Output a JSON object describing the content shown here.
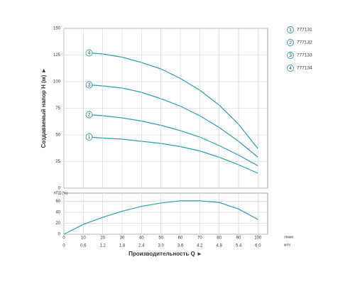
{
  "chart_data": [
    {
      "type": "line",
      "ylabel": "Создаваемый напор H (м) ►",
      "x": [
        13,
        20,
        30,
        40,
        50,
        60,
        70,
        80,
        90,
        100
      ],
      "xlim": [
        0,
        105
      ],
      "ylim": [
        0,
        150
      ],
      "yticks": [
        0,
        25,
        50,
        75,
        100,
        125,
        150
      ],
      "grid": true,
      "series": [
        {
          "name": "777131",
          "label": "1",
          "color": "#2b9cab",
          "values": [
            48,
            47,
            46,
            44,
            42,
            39,
            35,
            29,
            22,
            14
          ]
        },
        {
          "name": "777132",
          "label": "2",
          "color": "#2b9cab",
          "values": [
            69,
            68,
            66,
            63,
            59,
            54,
            48,
            40,
            31,
            21
          ]
        },
        {
          "name": "777133",
          "label": "3",
          "color": "#2b9cab",
          "values": [
            97,
            96,
            94,
            90,
            84,
            77,
            68,
            57,
            44,
            29
          ]
        },
        {
          "name": "777134",
          "label": "4",
          "color": "#2b9cab",
          "values": [
            127,
            126,
            123,
            118,
            112,
            103,
            92,
            78,
            60,
            37
          ]
        }
      ]
    },
    {
      "type": "line",
      "ylabel": "КПД (%)",
      "xlabel": "Производительность Q ►",
      "xunit": "л/мин",
      "x2unit": "м³/ч",
      "x": [
        0,
        10,
        20,
        30,
        40,
        50,
        60,
        70,
        80,
        90,
        100
      ],
      "values": [
        0,
        18,
        31,
        42,
        51,
        57,
        61,
        61,
        58,
        46,
        27
      ],
      "color": "#2b9cab",
      "xlim": [
        0,
        105
      ],
      "ylim": [
        0,
        75
      ],
      "yticks": [
        0,
        20,
        40,
        60
      ],
      "grid": true,
      "xticks": [
        0,
        10,
        20,
        30,
        40,
        50,
        60,
        70,
        80,
        90,
        100
      ],
      "x2lim": [
        0,
        6.3
      ],
      "x2ticks": [
        0,
        0.6,
        1.2,
        1.8,
        2.4,
        {
          "value": 3,
          "label": "3.0"
        },
        3.6,
        4.2,
        4.8,
        5.4,
        {
          "value": 6,
          "label": "6.0"
        }
      ]
    }
  ]
}
